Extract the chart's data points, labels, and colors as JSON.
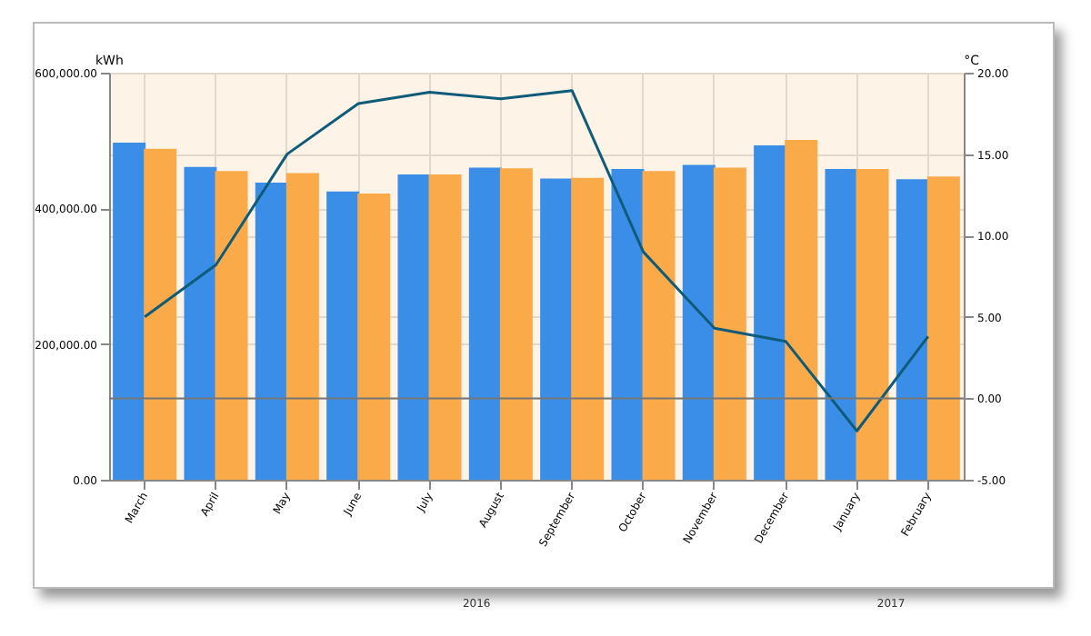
{
  "chart_data": {
    "type": "bar",
    "ylabel": "kWh",
    "y2label": "°C",
    "categories": [
      "March",
      "April",
      "May",
      "June",
      "July",
      "August",
      "September",
      "October",
      "November",
      "December",
      "January",
      "February"
    ],
    "series": [
      {
        "color": "#3a8ee8",
        "values": [
          497000,
          461000,
          438000,
          425000,
          450000,
          460000,
          444000,
          458000,
          464000,
          493000,
          458000,
          443000
        ]
      },
      {
        "color": "#fbaa4a",
        "values": [
          488000,
          455000,
          452000,
          422000,
          450000,
          459000,
          445000,
          455000,
          460000,
          501000,
          458000,
          447000
        ]
      },
      {
        "type": "line",
        "axis": "y2",
        "color": "#0f5c7a",
        "values": [
          5.0,
          8.2,
          15.0,
          18.1,
          18.8,
          18.4,
          18.9,
          9.0,
          4.3,
          3.5,
          -2.0,
          3.8
        ]
      }
    ],
    "ylim": [
      0,
      600000
    ],
    "yticks": [
      {
        "value": 0,
        "label": "0.00"
      },
      {
        "value": 200000,
        "label": "200,000.00"
      },
      {
        "value": 400000,
        "label": "400,000.00"
      },
      {
        "value": 600000,
        "label": "600,000.00"
      }
    ],
    "y2lim": [
      -5,
      20
    ],
    "y2ticks": [
      {
        "value": -5,
        "label": "-5.00"
      },
      {
        "value": 0,
        "label": "0.00"
      },
      {
        "value": 5,
        "label": "5.00"
      },
      {
        "value": 10,
        "label": "10.00"
      },
      {
        "value": 15,
        "label": "15.00"
      },
      {
        "value": 20,
        "label": "20.00"
      }
    ],
    "ref_lines": [
      {
        "axis": "y2",
        "value": 0,
        "color": "#777777"
      }
    ],
    "grid": true,
    "annotations": [
      "2016",
      "2017"
    ]
  }
}
